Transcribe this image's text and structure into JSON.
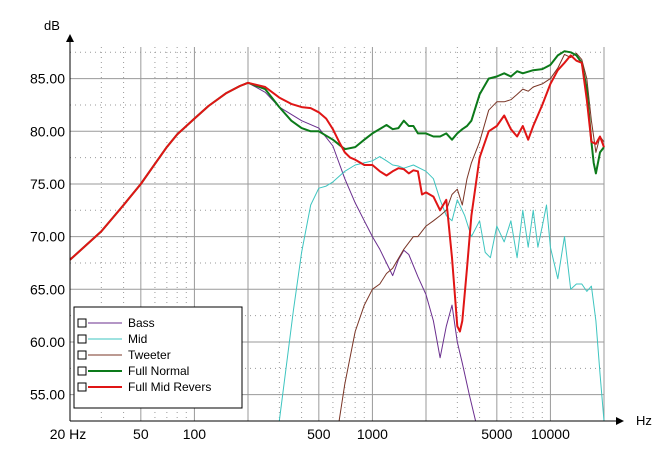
{
  "chart_data": {
    "type": "line",
    "title": "",
    "ylabel": "dB",
    "xlabel": "Hz",
    "x_scale": "log",
    "xlim": [
      20,
      20000
    ],
    "ylim": [
      52.5,
      88
    ],
    "grid": true,
    "legend_position": "bottom-left",
    "y_ticks": [
      {
        "value": 55,
        "label": "55.00"
      },
      {
        "value": 60,
        "label": "60.00"
      },
      {
        "value": 65,
        "label": "65.00"
      },
      {
        "value": 70,
        "label": "70.00"
      },
      {
        "value": 75,
        "label": "75.00"
      },
      {
        "value": 80,
        "label": "80.00"
      },
      {
        "value": 85,
        "label": "85.00"
      }
    ],
    "x_ticks": [
      {
        "value": 20,
        "label": "20 Hz"
      },
      {
        "value": 50,
        "label": "50"
      },
      {
        "value": 100,
        "label": "100"
      },
      {
        "value": 500,
        "label": "500"
      },
      {
        "value": 1000,
        "label": "1000"
      },
      {
        "value": 5000,
        "label": "5000"
      },
      {
        "value": 10000,
        "label": "10000"
      }
    ],
    "series": [
      {
        "name": "Bass",
        "color": "#6a2e8e",
        "points": [
          [
            200,
            84.6
          ],
          [
            250,
            83.7
          ],
          [
            300,
            82.3
          ],
          [
            400,
            81
          ],
          [
            500,
            80.3
          ],
          [
            600,
            78.6
          ],
          [
            700,
            75.5
          ],
          [
            800,
            73.2
          ],
          [
            900,
            71.5
          ],
          [
            1000,
            70
          ],
          [
            1100,
            68.8
          ],
          [
            1200,
            67.5
          ],
          [
            1300,
            66.3
          ],
          [
            1400,
            67.8
          ],
          [
            1500,
            68.7
          ],
          [
            1600,
            68.3
          ],
          [
            1800,
            66.2
          ],
          [
            2000,
            64.5
          ],
          [
            2200,
            62
          ],
          [
            2400,
            58.5
          ],
          [
            2600,
            61.5
          ],
          [
            2800,
            63.5
          ],
          [
            3000,
            60
          ],
          [
            3200,
            58
          ],
          [
            3500,
            55
          ],
          [
            3800,
            52.5
          ]
        ]
      },
      {
        "name": "Mid",
        "color": "#3ec5c0",
        "points": [
          [
            300,
            52.5
          ],
          [
            330,
            58
          ],
          [
            360,
            63
          ],
          [
            400,
            68.5
          ],
          [
            450,
            73
          ],
          [
            500,
            74.6
          ],
          [
            550,
            74.8
          ],
          [
            600,
            75.2
          ],
          [
            700,
            76.2
          ],
          [
            800,
            76.8
          ],
          [
            900,
            77
          ],
          [
            1000,
            77.2
          ],
          [
            1100,
            77.6
          ],
          [
            1200,
            77.2
          ],
          [
            1300,
            76.8
          ],
          [
            1400,
            76.7
          ],
          [
            1500,
            76.5
          ],
          [
            1700,
            76.8
          ],
          [
            2000,
            76.2
          ],
          [
            2200,
            75.5
          ],
          [
            2400,
            73.5
          ],
          [
            2600,
            72
          ],
          [
            2800,
            71.5
          ],
          [
            3000,
            73.5
          ],
          [
            3300,
            72
          ],
          [
            3600,
            70
          ],
          [
            4000,
            71.5
          ],
          [
            4300,
            68.5
          ],
          [
            4600,
            68
          ],
          [
            5000,
            71
          ],
          [
            5500,
            69.5
          ],
          [
            6000,
            71.5
          ],
          [
            6500,
            68
          ],
          [
            7000,
            72.5
          ],
          [
            7500,
            69
          ],
          [
            8000,
            72.5
          ],
          [
            8500,
            69
          ],
          [
            9000,
            71
          ],
          [
            9500,
            73
          ],
          [
            10000,
            69
          ],
          [
            11000,
            66
          ],
          [
            12000,
            70
          ],
          [
            13000,
            65
          ],
          [
            14000,
            65.5
          ],
          [
            15000,
            65.5
          ],
          [
            16000,
            64.8
          ],
          [
            17000,
            65.3
          ],
          [
            18000,
            62
          ],
          [
            19000,
            57
          ],
          [
            20000,
            52.5
          ]
        ]
      },
      {
        "name": "Tweeter",
        "color": "#7a3526",
        "points": [
          [
            650,
            52.5
          ],
          [
            700,
            56
          ],
          [
            800,
            61
          ],
          [
            900,
            63.5
          ],
          [
            1000,
            65
          ],
          [
            1100,
            65.5
          ],
          [
            1200,
            66.5
          ],
          [
            1300,
            67
          ],
          [
            1500,
            68.8
          ],
          [
            1700,
            70
          ],
          [
            1800,
            70
          ],
          [
            2000,
            71
          ],
          [
            2200,
            71.5
          ],
          [
            2400,
            72
          ],
          [
            2600,
            72.5
          ],
          [
            2800,
            74
          ],
          [
            3000,
            74.5
          ],
          [
            3200,
            73
          ],
          [
            3400,
            75.5
          ],
          [
            3600,
            77
          ],
          [
            4000,
            79
          ],
          [
            4500,
            82
          ],
          [
            5000,
            82.8
          ],
          [
            5500,
            82.8
          ],
          [
            6000,
            83
          ],
          [
            6500,
            83.5
          ],
          [
            7000,
            84
          ],
          [
            7500,
            83.8
          ],
          [
            8000,
            84.2
          ],
          [
            9000,
            84.5
          ],
          [
            10000,
            85
          ],
          [
            11000,
            86
          ],
          [
            12000,
            87.3
          ],
          [
            13000,
            87
          ],
          [
            14000,
            87.4
          ],
          [
            15000,
            86.8
          ],
          [
            16000,
            85
          ],
          [
            17000,
            81
          ],
          [
            18000,
            78
          ],
          [
            19000,
            79.5
          ],
          [
            20000,
            79
          ]
        ]
      },
      {
        "name": "Full Normal",
        "color": "#0c7a1a",
        "points": [
          [
            20,
            67.8
          ],
          [
            30,
            70.5
          ],
          [
            40,
            73
          ],
          [
            50,
            75
          ],
          [
            60,
            76.9
          ],
          [
            70,
            78.5
          ],
          [
            80,
            79.7
          ],
          [
            100,
            81.2
          ],
          [
            120,
            82.4
          ],
          [
            150,
            83.6
          ],
          [
            180,
            84.3
          ],
          [
            200,
            84.6
          ],
          [
            250,
            84
          ],
          [
            300,
            82.3
          ],
          [
            350,
            81
          ],
          [
            400,
            80.3
          ],
          [
            450,
            80
          ],
          [
            500,
            80
          ],
          [
            600,
            79.2
          ],
          [
            700,
            78.3
          ],
          [
            800,
            78.5
          ],
          [
            900,
            79.2
          ],
          [
            1000,
            79.8
          ],
          [
            1200,
            80.6
          ],
          [
            1300,
            80.2
          ],
          [
            1400,
            80.3
          ],
          [
            1500,
            81
          ],
          [
            1600,
            80.5
          ],
          [
            1700,
            80.5
          ],
          [
            1800,
            79.8
          ],
          [
            2000,
            79.8
          ],
          [
            2200,
            79.5
          ],
          [
            2400,
            79.5
          ],
          [
            2600,
            79.8
          ],
          [
            2800,
            79.2
          ],
          [
            3000,
            79.8
          ],
          [
            3200,
            80.2
          ],
          [
            3400,
            80.5
          ],
          [
            3600,
            81
          ],
          [
            4000,
            83.5
          ],
          [
            4500,
            85
          ],
          [
            5000,
            85.2
          ],
          [
            5500,
            85.5
          ],
          [
            6000,
            85.2
          ],
          [
            6500,
            85.7
          ],
          [
            7000,
            85.5
          ],
          [
            8000,
            85.8
          ],
          [
            9000,
            85.9
          ],
          [
            10000,
            86.3
          ],
          [
            11000,
            87.2
          ],
          [
            12000,
            87.6
          ],
          [
            13000,
            87.5
          ],
          [
            14000,
            87.2
          ],
          [
            15000,
            86.5
          ],
          [
            16000,
            84
          ],
          [
            17000,
            79
          ],
          [
            17500,
            77
          ],
          [
            18000,
            76
          ],
          [
            19000,
            78
          ],
          [
            20000,
            78.5
          ]
        ]
      },
      {
        "name": "Full Mid Revers",
        "color": "#e01515",
        "points": [
          [
            20,
            67.8
          ],
          [
            30,
            70.5
          ],
          [
            40,
            73
          ],
          [
            50,
            75
          ],
          [
            60,
            76.9
          ],
          [
            70,
            78.5
          ],
          [
            80,
            79.7
          ],
          [
            100,
            81.2
          ],
          [
            120,
            82.4
          ],
          [
            150,
            83.6
          ],
          [
            180,
            84.3
          ],
          [
            200,
            84.6
          ],
          [
            250,
            84.2
          ],
          [
            300,
            83.2
          ],
          [
            350,
            82.6
          ],
          [
            400,
            82.3
          ],
          [
            450,
            82.2
          ],
          [
            500,
            81.8
          ],
          [
            550,
            81.2
          ],
          [
            600,
            80.2
          ],
          [
            650,
            79
          ],
          [
            700,
            78
          ],
          [
            750,
            77.5
          ],
          [
            800,
            77.3
          ],
          [
            900,
            76.8
          ],
          [
            1000,
            76.8
          ],
          [
            1100,
            76.2
          ],
          [
            1200,
            75.8
          ],
          [
            1300,
            76.2
          ],
          [
            1400,
            76.5
          ],
          [
            1500,
            76.4
          ],
          [
            1600,
            76
          ],
          [
            1700,
            76.3
          ],
          [
            1800,
            76.2
          ],
          [
            1900,
            74
          ],
          [
            2000,
            74.2
          ],
          [
            2200,
            73.8
          ],
          [
            2400,
            72.5
          ],
          [
            2600,
            73.5
          ],
          [
            2800,
            68
          ],
          [
            3000,
            61.5
          ],
          [
            3100,
            61
          ],
          [
            3200,
            62
          ],
          [
            3400,
            67
          ],
          [
            3600,
            72
          ],
          [
            4000,
            77.5
          ],
          [
            4500,
            80
          ],
          [
            5000,
            80.5
          ],
          [
            5500,
            81.5
          ],
          [
            6000,
            80.2
          ],
          [
            6500,
            79.5
          ],
          [
            7000,
            80.5
          ],
          [
            7500,
            79.2
          ],
          [
            8000,
            80.5
          ],
          [
            9000,
            82.5
          ],
          [
            10000,
            84.5
          ],
          [
            11000,
            85.8
          ],
          [
            12000,
            86.5
          ],
          [
            13000,
            87.2
          ],
          [
            14000,
            86.7
          ],
          [
            15000,
            86.5
          ],
          [
            16000,
            83
          ],
          [
            17000,
            79
          ],
          [
            18000,
            78.8
          ],
          [
            19000,
            79.5
          ],
          [
            20000,
            78.5
          ]
        ]
      }
    ]
  }
}
